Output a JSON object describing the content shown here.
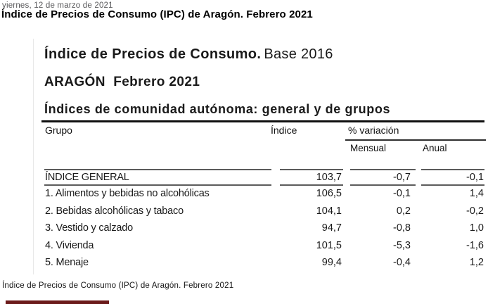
{
  "page": {
    "date_line": "viernes, 12 de marzo de 2021",
    "title": "Índice de Precios de Consumo (IPC) de Aragón. Febrero 2021",
    "caption": "Índice de Precios de Consumo (IPC) de Aragón. Febrero 2021"
  },
  "report": {
    "title_bold": "Índice de Precios de Consumo.",
    "title_base": "Base 2016",
    "subtitle": "ARAGÓN  Febrero 2021",
    "section_title": "Índices de comunidad autónoma: general y de grupos"
  },
  "table": {
    "columns": {
      "group": "Grupo",
      "index": "Índice",
      "variation": "% variación",
      "monthly": "Mensual",
      "annual": "Anual"
    },
    "general_row": {
      "group": "ÍNDICE GENERAL",
      "index": "103,7",
      "monthly": "-0,7",
      "annual": "-0,1"
    },
    "rows": [
      {
        "group": "1. Alimentos y bebidas no alcohólicas",
        "index": "106,5",
        "monthly": "-0,1",
        "annual": "1,4"
      },
      {
        "group": "2. Bebidas alcohólicas y tabaco",
        "index": "104,1",
        "monthly": "0,2",
        "annual": "-0,2"
      },
      {
        "group": "3. Vestido y calzado",
        "index": "94,7",
        "monthly": "-0,8",
        "annual": "1,0"
      },
      {
        "group": "4. Vivienda",
        "index": "101,5",
        "monthly": "-5,3",
        "annual": "-1,6"
      },
      {
        "group": "5. Menaje",
        "index": "99,4",
        "monthly": "-0,4",
        "annual": "1,2"
      }
    ]
  },
  "colors": {
    "accent_bar": "#6b1a1a",
    "date_text": "#58585a"
  }
}
